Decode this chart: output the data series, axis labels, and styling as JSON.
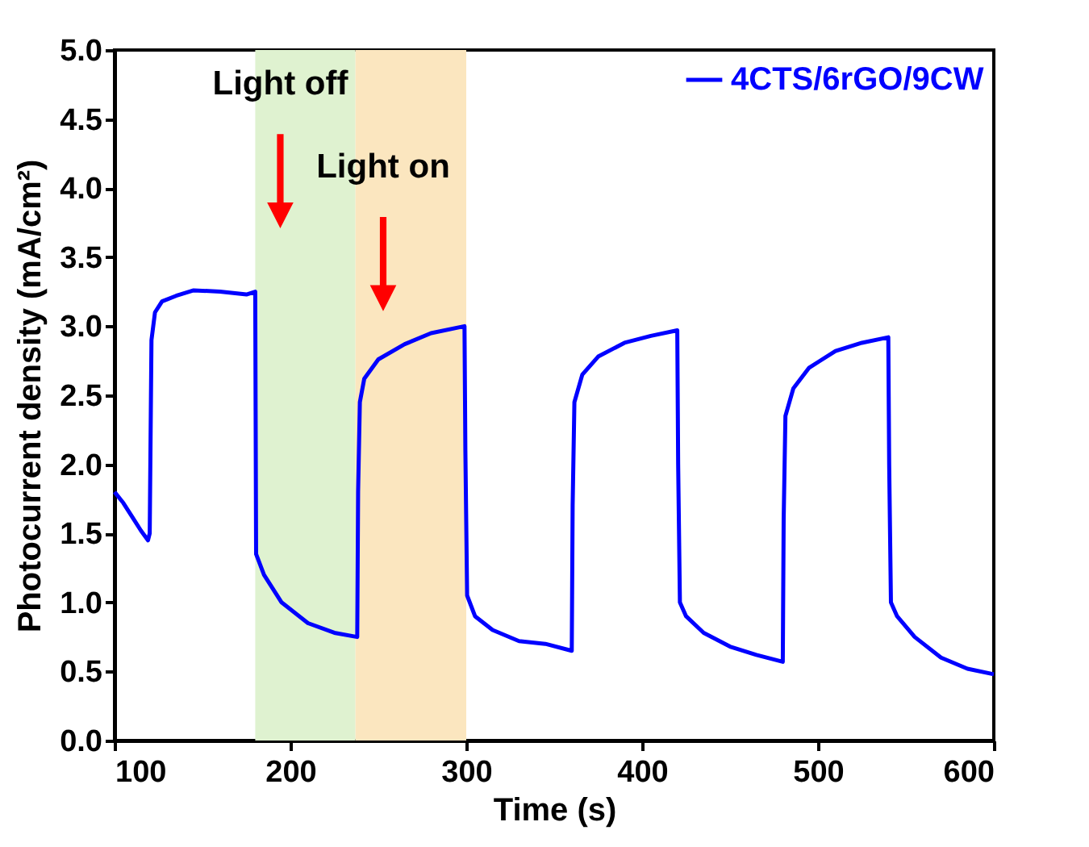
{
  "chart_data": {
    "type": "line",
    "xlabel": "Time (s)",
    "ylabel": "Photocurrent density (mA/cm²)",
    "xlim": [
      100,
      600
    ],
    "xticks": [
      100,
      200,
      300,
      400,
      500,
      600
    ],
    "ylim": [
      0,
      5
    ],
    "yticks": [
      {
        "value": 0,
        "label": "0.0"
      },
      0.5,
      {
        "value": 1,
        "label": "1.0"
      },
      1.5,
      {
        "value": 2,
        "label": "2.0"
      },
      2.5,
      {
        "value": 3,
        "label": "3.0"
      },
      3.5,
      {
        "value": 4,
        "label": "4.0"
      },
      4.5,
      {
        "value": 5,
        "label": "5.0"
      }
    ],
    "grid": false,
    "legend": "top right",
    "line_style": "solid",
    "marker": "none",
    "series": [
      {
        "name": "4CTS/6rGO/9CW",
        "color": "#0000ff",
        "x": [
          100,
          105,
          110,
          115,
          119,
          120,
          121,
          123,
          127,
          135,
          145,
          160,
          175,
          180,
          180.5,
          185,
          195,
          210,
          225,
          238,
          238.5,
          239.5,
          242,
          250,
          265,
          280,
          299,
          299.5,
          300.5,
          305,
          315,
          330,
          345,
          360,
          360.5,
          361.5,
          366,
          375,
          390,
          405,
          420,
          420.5,
          421.5,
          425,
          435,
          450,
          465,
          480,
          480.5,
          481.5,
          486,
          495,
          510,
          525,
          540,
          540.5,
          541.5,
          545,
          555,
          570,
          585,
          600
        ],
        "values": [
          1.8,
          1.72,
          1.62,
          1.52,
          1.45,
          1.5,
          2.9,
          3.1,
          3.18,
          3.22,
          3.26,
          3.25,
          3.23,
          3.25,
          1.35,
          1.2,
          1.0,
          0.85,
          0.78,
          0.75,
          1.8,
          2.45,
          2.62,
          2.76,
          2.87,
          2.95,
          3.0,
          2.1,
          1.05,
          0.9,
          0.8,
          0.72,
          0.7,
          0.65,
          1.7,
          2.45,
          2.65,
          2.78,
          2.88,
          2.93,
          2.97,
          2.0,
          1.0,
          0.9,
          0.78,
          0.68,
          0.62,
          0.57,
          1.6,
          2.35,
          2.55,
          2.7,
          2.82,
          2.88,
          2.92,
          2.0,
          1.0,
          0.9,
          0.75,
          0.6,
          0.52,
          0.48
        ]
      }
    ],
    "bands": [
      {
        "axis": "x",
        "from": 180,
        "to": 237,
        "color": "#dff2d0"
      },
      {
        "axis": "x",
        "from": 237,
        "to": 300,
        "color": "#fbe6bf"
      }
    ],
    "annotations": [
      "Light off",
      "Light on"
    ]
  }
}
